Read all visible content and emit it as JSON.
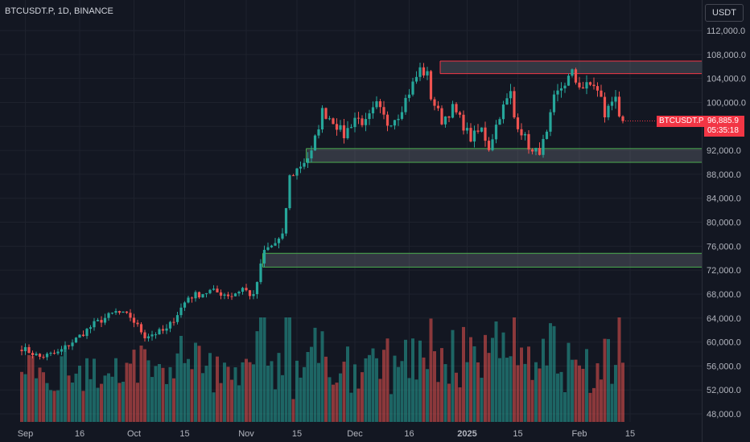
{
  "header": {
    "symbol_line": "BTCUSDT.P, 1D, BINANCE"
  },
  "toolbar": {
    "currency_label": "USDT"
  },
  "last_price": {
    "symbol_tag": "BTCUSDT.P",
    "price": "96,885.9",
    "countdown": "05:35:18"
  },
  "colors": {
    "up": "#26a69a",
    "down": "#ef5350",
    "zone_border_green": "#4caf50",
    "zone_border_red": "#f23645",
    "background": "#131722"
  },
  "chart_data": {
    "type": "candlestick",
    "y_axis": {
      "min": 47000,
      "max": 114000,
      "ticks": [
        "112,000.0",
        "108,000.0",
        "104,000.0",
        "100,000.0",
        "96,000.0",
        "92,000.0",
        "88,000.0",
        "84,000.0",
        "80,000.0",
        "76,000.0",
        "72,000.0",
        "68,000.0",
        "64,000.0",
        "60,000.0",
        "56,000.0",
        "52,000.0",
        "48,000.0"
      ],
      "tick_values": [
        112000,
        108000,
        104000,
        100000,
        96000,
        92000,
        88000,
        84000,
        80000,
        76000,
        72000,
        68000,
        64000,
        60000,
        56000,
        52000,
        48000
      ]
    },
    "x_axis": {
      "start_date": "2024-08-31",
      "ticks": [
        {
          "label": "Sep",
          "date": "2024-09-01"
        },
        {
          "label": "16",
          "date": "2024-09-16"
        },
        {
          "label": "Oct",
          "date": "2024-10-01"
        },
        {
          "label": "15",
          "date": "2024-10-15"
        },
        {
          "label": "Nov",
          "date": "2024-11-01"
        },
        {
          "label": "15",
          "date": "2024-11-15"
        },
        {
          "label": "Dec",
          "date": "2024-12-01"
        },
        {
          "label": "16",
          "date": "2024-12-16"
        },
        {
          "label": "2025",
          "date": "2025-01-01"
        },
        {
          "label": "15",
          "date": "2025-01-15"
        },
        {
          "label": "Feb",
          "date": "2025-02-01"
        },
        {
          "label": "15",
          "date": "2025-02-15"
        }
      ]
    },
    "zones": [
      {
        "low": 104800,
        "high": 106900,
        "border": "red",
        "from_day": 116
      },
      {
        "low": 90000,
        "high": 92300,
        "border": "green",
        "from_day": 79
      },
      {
        "low": 72500,
        "high": 74800,
        "border": "green",
        "from_day": 67
      }
    ],
    "anchors": [
      [
        0,
        59000
      ],
      [
        5,
        57500
      ],
      [
        10,
        58200
      ],
      [
        15,
        60500
      ],
      [
        20,
        63000
      ],
      [
        26,
        65000
      ],
      [
        30,
        64200
      ],
      [
        34,
        61000
      ],
      [
        40,
        62000
      ],
      [
        46,
        67500
      ],
      [
        52,
        68500
      ],
      [
        58,
        67800
      ],
      [
        61,
        69000
      ],
      [
        64,
        67500
      ],
      [
        67,
        75200
      ],
      [
        70,
        76500
      ],
      [
        72,
        77500
      ],
      [
        74,
        87500
      ],
      [
        77,
        89500
      ],
      [
        80,
        91500
      ],
      [
        83,
        98500
      ],
      [
        86,
        97000
      ],
      [
        89,
        94500
      ],
      [
        92,
        97500
      ],
      [
        95,
        96500
      ],
      [
        98,
        99500
      ],
      [
        101,
        96500
      ],
      [
        104,
        98000
      ],
      [
        107,
        101800
      ],
      [
        110,
        105500
      ],
      [
        112,
        104500
      ],
      [
        113,
        101000
      ],
      [
        116,
        97000
      ],
      [
        119,
        99000
      ],
      [
        121,
        97200
      ],
      [
        124,
        94000
      ],
      [
        127,
        95500
      ],
      [
        129,
        92500
      ],
      [
        132,
        98000
      ],
      [
        135,
        101500
      ],
      [
        136,
        97500
      ],
      [
        139,
        94000
      ],
      [
        141,
        91500
      ],
      [
        143,
        92000
      ],
      [
        145,
        94500
      ],
      [
        147,
        100500
      ],
      [
        149,
        102500
      ],
      [
        152,
        104800
      ],
      [
        153,
        103500
      ],
      [
        155,
        102500
      ],
      [
        158,
        103000
      ],
      [
        160,
        100500
      ],
      [
        161,
        97800
      ],
      [
        164,
        101500
      ],
      [
        165,
        98000
      ],
      [
        166,
        96900
      ]
    ],
    "volume_max": 1
  }
}
